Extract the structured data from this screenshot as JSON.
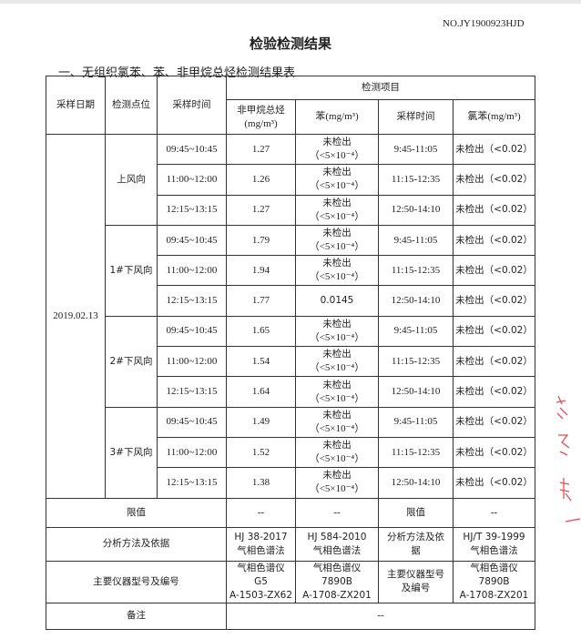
{
  "doc_no": "NO.JY1900923HJD",
  "title": "检验检测结果",
  "subtitle": "一、无组织氯苯、苯、非甲烷总烃检测结果表",
  "header": {
    "date": "采样日期",
    "point": "检测点位",
    "time": "采样时间",
    "items": "检测项目",
    "nmhc_1": "非甲烷总烃",
    "nmhc_2": "(mg/m³)",
    "benzene": "苯(mg/m³)",
    "time2": "采样时间",
    "chlorobenzene": "氯苯(mg/m³)"
  },
  "date": "2019.02.13",
  "groups": [
    {
      "point": "上风向",
      "rows": [
        {
          "time": "09:45~10:45",
          "nmhc": "1.27",
          "benzene_1": "未检出",
          "benzene_2": "（<5×10⁻⁴）",
          "time2": "9:45-11:05",
          "cb": "未检出（<0.02）"
        },
        {
          "time": "11:00~12:00",
          "nmhc": "1.26",
          "benzene_1": "未检出",
          "benzene_2": "（<5×10⁻⁴）",
          "time2": "11:15-12:35",
          "cb": "未检出（<0.02）"
        },
        {
          "time": "12:15~13:15",
          "nmhc": "1.27",
          "benzene_1": "未检出",
          "benzene_2": "（<5×10⁻⁴）",
          "time2": "12:50-14:10",
          "cb": "未检出（<0.02）"
        }
      ]
    },
    {
      "point": "1#下风向",
      "rows": [
        {
          "time": "09:45~10:45",
          "nmhc": "1.79",
          "benzene_1": "未检出",
          "benzene_2": "（<5×10⁻⁴）",
          "time2": "9:45-11:05",
          "cb": "未检出（<0.02）"
        },
        {
          "time": "11:00~12:00",
          "nmhc": "1.94",
          "benzene_1": "未检出",
          "benzene_2": "（<5×10⁻⁴）",
          "time2": "11:15-12:35",
          "cb": "未检出（<0.02）"
        },
        {
          "time": "12:15~13:15",
          "nmhc": "1.77",
          "benzene_1": "0.0145",
          "benzene_2": "",
          "time2": "12:50-14:10",
          "cb": "未检出（<0.02）"
        }
      ]
    },
    {
      "point": "2#下风向",
      "rows": [
        {
          "time": "09:45~10:45",
          "nmhc": "1.65",
          "benzene_1": "未检出",
          "benzene_2": "（<5×10⁻⁴）",
          "time2": "9:45-11:05",
          "cb": "未检出（<0.02）"
        },
        {
          "time": "11:00~12:00",
          "nmhc": "1.54",
          "benzene_1": "未检出",
          "benzene_2": "（<5×10⁻⁴）",
          "time2": "11:15-12:35",
          "cb": "未检出（<0.02）"
        },
        {
          "time": "12:15~13:15",
          "nmhc": "1.64",
          "benzene_1": "未检出",
          "benzene_2": "（<5×10⁻⁴）",
          "time2": "12:50-14:10",
          "cb": "未检出（<0.02）"
        }
      ]
    },
    {
      "point": "3#下风向",
      "rows": [
        {
          "time": "09:45~10:45",
          "nmhc": "1.49",
          "benzene_1": "未检出",
          "benzene_2": "（<5×10⁻⁴）",
          "time2": "9:45-11:05",
          "cb": "未检出（<0.02）"
        },
        {
          "time": "11:00~12:00",
          "nmhc": "1.52",
          "benzene_1": "未检出",
          "benzene_2": "（<5×10⁻⁴）",
          "time2": "11:15-12:35",
          "cb": "未检出（<0.02）"
        },
        {
          "time": "12:15~13:15",
          "nmhc": "1.38",
          "benzene_1": "未检出",
          "benzene_2": "（<5×10⁻⁴）",
          "time2": "12:50-14:10",
          "cb": "未检出（<0.02）"
        }
      ]
    }
  ],
  "footer": {
    "limit_label": "限值",
    "limit_nmhc": "--",
    "limit_benzene": "--",
    "limit_label2": "限值",
    "limit_cb": "--",
    "method_label": "分析方法及依据",
    "method_nmhc": [
      "HJ 38-2017",
      "气相色谱法"
    ],
    "method_benzene": [
      "HJ 584-2010",
      "气相色谱法"
    ],
    "method_label2": [
      "分析方法及依",
      "据"
    ],
    "method_cb": [
      "HJ/T 39-1999",
      "气相色谱法"
    ],
    "instr_label": "主要仪器型号及编号",
    "instr_nmhc": [
      "气相色谱仪",
      "G5",
      "A-1503-ZX62"
    ],
    "instr_benzene": [
      "气相色谱仪",
      "7890B",
      "A-1708-ZX201"
    ],
    "instr_label2": [
      "主要仪器型号",
      "及编号"
    ],
    "instr_cb": [
      "气相色谱仪",
      "7890B",
      "A-1708-ZX201"
    ],
    "remark_label": "备注",
    "remark": "--"
  },
  "stamp_color": "#e0303a"
}
